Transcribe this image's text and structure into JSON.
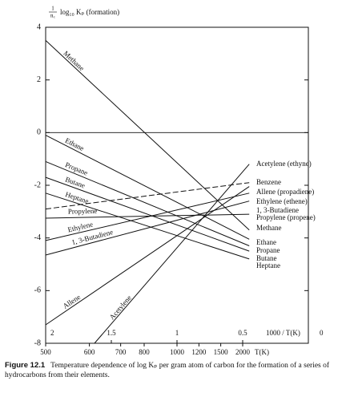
{
  "chart_data": {
    "type": "line",
    "y_label_fraction": {
      "numerator": "1",
      "denominator": "n꜀"
    },
    "y_label": "log₁₀ Kₚ (formation)",
    "x_label": "1000 / T(K)",
    "x2_label": "T(K)",
    "xlim": [
      2,
      0
    ],
    "ylim": [
      -8,
      4
    ],
    "yticks": [
      4,
      2,
      0,
      -2,
      -4,
      -6,
      -8
    ],
    "xticks": [
      2,
      1.5,
      1,
      0.5,
      0
    ],
    "x2ticks": [
      {
        "value": 2,
        "label": "500"
      },
      {
        "value": 1.667,
        "label": "600"
      },
      {
        "value": 1.429,
        "label": "700"
      },
      {
        "value": 1.25,
        "label": "800"
      },
      {
        "value": 1,
        "label": "1000"
      },
      {
        "value": 0.833,
        "label": "1200"
      },
      {
        "value": 0.667,
        "label": "1500"
      },
      {
        "value": 0.5,
        "label": "2000"
      }
    ],
    "zero_line": true,
    "color": "#111111",
    "series": [
      {
        "name": "Methane",
        "left_label": "Methane",
        "x": [
          2,
          0.45
        ],
        "values": [
          3.5,
          -3.7
        ]
      },
      {
        "name": "Ethane",
        "left_label": "Ethane",
        "x": [
          2,
          0.45
        ],
        "values": [
          -0.1,
          -4.05
        ]
      },
      {
        "name": "Propane",
        "left_label": "Propane",
        "x": [
          2,
          0.45
        ],
        "values": [
          -1.1,
          -4.3
        ]
      },
      {
        "name": "Butane",
        "left_label": "Butane",
        "x": [
          2,
          0.45
        ],
        "values": [
          -1.7,
          -4.5
        ]
      },
      {
        "name": "Heptane",
        "left_label": "Heptane",
        "x": [
          2,
          0.45
        ],
        "values": [
          -2.3,
          -4.8
        ]
      },
      {
        "name": "Benzene",
        "dashed": true,
        "x": [
          2,
          0.45
        ],
        "values": [
          -2.9,
          -1.9
        ]
      },
      {
        "name": "Propylene (propene)",
        "left_label": "Propylene",
        "x": [
          2,
          0.45
        ],
        "values": [
          -3.25,
          -3.1
        ]
      },
      {
        "name": "Ethylene (ethene)",
        "left_label": "Ethylene",
        "x": [
          2,
          0.45
        ],
        "values": [
          -4.1,
          -2.3
        ]
      },
      {
        "name": "1, 3-Butadiene",
        "left_label": "1, 3-Butadiene",
        "x": [
          2,
          0.45
        ],
        "values": [
          -4.65,
          -2.6
        ]
      },
      {
        "name": "Allene (propadiene)",
        "left_label": "Allene",
        "x": [
          2,
          0.45
        ],
        "values": [
          -7.3,
          -2.05
        ]
      },
      {
        "name": "Acetylene (ethyne)",
        "left_label": "Acetylene",
        "x": [
          1.628,
          0.45
        ],
        "values": [
          -8,
          -1.2
        ]
      }
    ],
    "caption_label": "Figure 12.1",
    "caption": "Temperature dependence of log Kₚ per gram atom of carbon for the formation of a series of hydrocarbons from their elements."
  }
}
